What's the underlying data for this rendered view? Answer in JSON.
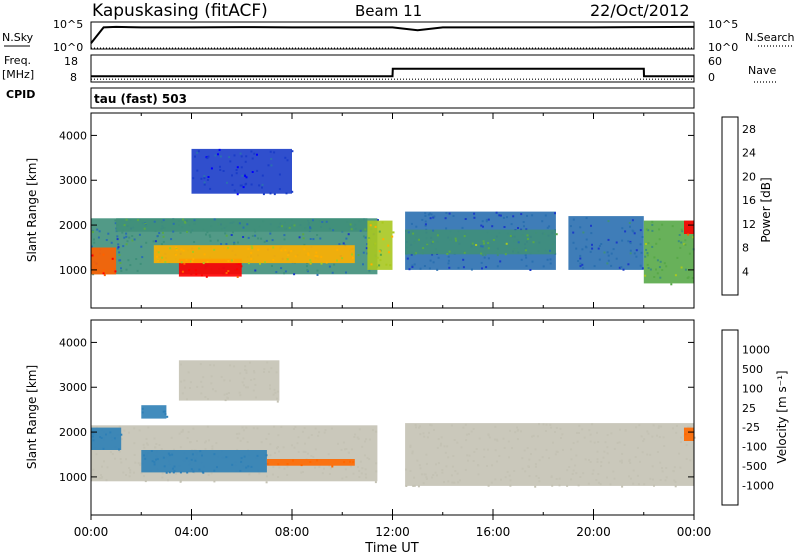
{
  "header": {
    "station": "Kapuskasing (fitACF)",
    "beam": "Beam 11",
    "date": "22/Oct/2012"
  },
  "labels": {
    "nsky": "N.Sky",
    "freq": "Freq.",
    "mhz": "[MHz]",
    "cpid": "CPID",
    "nsearch": "N.Search",
    "nave": "Nave",
    "tau": "tau (fast) 503"
  },
  "chart_data": [
    {
      "type": "line",
      "panel": "noise",
      "left_ticks": [
        "10^5",
        "10^0"
      ],
      "right_ticks": [
        "10^5",
        "10^0"
      ],
      "series": [
        {
          "name": "N.Sky",
          "x": [
            0,
            0.5,
            1,
            2,
            4,
            6,
            8,
            10,
            12,
            13,
            14,
            16,
            18,
            20,
            22,
            24
          ],
          "values": [
            1,
            4.3,
            4.4,
            4.3,
            4.3,
            4.35,
            4.3,
            4.3,
            4.3,
            3.7,
            4.3,
            4.3,
            4.3,
            4.3,
            4.35,
            4.4
          ]
        },
        {
          "name": "N.Search",
          "x": [
            0,
            12,
            24
          ],
          "values": [
            0,
            0,
            0
          ]
        }
      ]
    },
    {
      "type": "line",
      "panel": "frequency",
      "left_ticks": [
        "18",
        "8"
      ],
      "right_ticks": [
        "60",
        "0"
      ],
      "series": [
        {
          "name": "Freq.",
          "x": [
            0,
            12,
            12.01,
            22,
            22.01,
            24
          ],
          "values": [
            10.4,
            10.4,
            15,
            15,
            10.4,
            10.4
          ]
        },
        {
          "name": "Nave",
          "x": [
            0,
            24
          ],
          "values": [
            3,
            3
          ]
        }
      ]
    },
    {
      "type": "heatmap",
      "panel": "power",
      "xlabel": "",
      "ylabel": "Slant Range [km]",
      "xlim": [
        0,
        24
      ],
      "ylim": [
        150,
        4500
      ],
      "yticks": [
        1000,
        2000,
        3000,
        4000
      ],
      "colorbar": {
        "label": "Power [dB]",
        "ticks": [
          4,
          8,
          12,
          16,
          20,
          24,
          28
        ],
        "range": [
          0,
          30
        ]
      },
      "regions": [
        {
          "t0": 0.0,
          "t1": 11.4,
          "r0": 900,
          "r1": 2150,
          "value": 10
        },
        {
          "t0": 0.0,
          "t1": 1.0,
          "r0": 900,
          "r1": 1500,
          "value": 26
        },
        {
          "t0": 3.5,
          "t1": 6.0,
          "r0": 850,
          "r1": 1250,
          "value": 28
        },
        {
          "t0": 2.5,
          "t1": 10.5,
          "r0": 1150,
          "r1": 1550,
          "value": 20
        },
        {
          "t0": 1.0,
          "t1": 11.0,
          "r0": 1850,
          "r1": 2150,
          "value": 12
        },
        {
          "t0": 4.0,
          "t1": 8.0,
          "r0": 2700,
          "r1": 3700,
          "value": 5
        },
        {
          "t0": 11.0,
          "t1": 12.0,
          "r0": 1000,
          "r1": 2100,
          "value": 18
        },
        {
          "t0": 12.5,
          "t1": 18.5,
          "r0": 1000,
          "r1": 2300,
          "value": 7
        },
        {
          "t0": 12.5,
          "t1": 18.5,
          "r0": 1350,
          "r1": 1900,
          "value": 13
        },
        {
          "t0": 19.0,
          "t1": 22.0,
          "r0": 1000,
          "r1": 2200,
          "value": 8
        },
        {
          "t0": 22.0,
          "t1": 24.0,
          "r0": 700,
          "r1": 2100,
          "value": 14
        },
        {
          "t0": 23.6,
          "t1": 24.0,
          "r0": 1800,
          "r1": 2100,
          "value": 27
        }
      ]
    },
    {
      "type": "heatmap",
      "panel": "velocity",
      "xlabel": "Time UT",
      "ylabel": "Slant Range [km]",
      "xlim": [
        0,
        24
      ],
      "ylim": [
        150,
        4500
      ],
      "yticks": [
        1000,
        2000,
        3000,
        4000
      ],
      "xticks": [
        "00:00",
        "04:00",
        "08:00",
        "12:00",
        "16:00",
        "20:00",
        "00:00"
      ],
      "colorbar": {
        "label": "Velocity [m s⁻¹]",
        "ticks": [
          1000,
          500,
          100,
          25,
          -25,
          -100,
          -500,
          -1000
        ]
      },
      "regions": [
        {
          "t0": 0.0,
          "t1": 11.4,
          "r0": 900,
          "r1": 2150,
          "value": 0
        },
        {
          "t0": 0.0,
          "t1": 1.2,
          "r0": 1600,
          "r1": 2100,
          "value": 150
        },
        {
          "t0": 2.0,
          "t1": 7.0,
          "r0": 1100,
          "r1": 1600,
          "value": 120
        },
        {
          "t0": 7.0,
          "t1": 10.5,
          "r0": 1250,
          "r1": 1400,
          "value": -150
        },
        {
          "t0": 12.5,
          "t1": 24.0,
          "r0": 800,
          "r1": 2200,
          "value": 0
        },
        {
          "t0": 23.6,
          "t1": 24.0,
          "r0": 1800,
          "r1": 2100,
          "value": -400
        },
        {
          "t0": 2.0,
          "t1": 3.0,
          "r0": 2300,
          "r1": 2600,
          "value": 300
        },
        {
          "t0": 3.5,
          "t1": 7.5,
          "r0": 2700,
          "r1": 3600,
          "value": 10
        }
      ]
    }
  ],
  "colors": {
    "power": [
      "#0000ff",
      "#1a3cc8",
      "#2a6fb0",
      "#3f8f7a",
      "#58a848",
      "#a8c820",
      "#ffb000",
      "#ff6000",
      "#ff0000"
    ],
    "velocity": [
      "#1038c8",
      "#2e7fb6",
      "#3c9a48",
      "#60c030",
      "#c4c2b4",
      "#ff9c20",
      "#ff6800",
      "#ff0000"
    ]
  }
}
